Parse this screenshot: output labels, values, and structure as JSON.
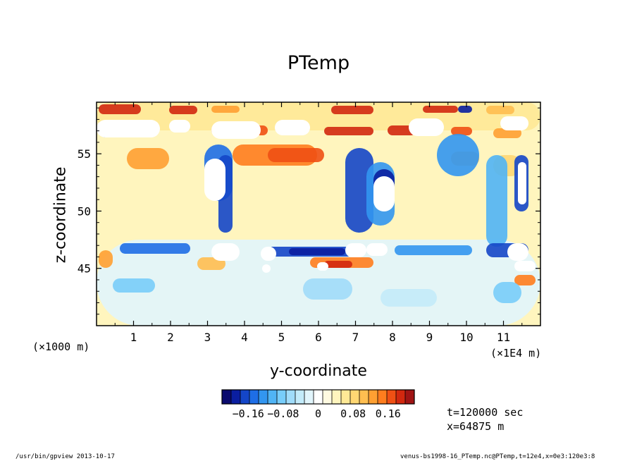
{
  "chart_data": {
    "type": "heatmap",
    "title": "PTemp",
    "xlabel": "y-coordinate",
    "ylabel": "z-coordinate",
    "x_unit": "(×1E4 m)",
    "y_unit": "(×1000 m)",
    "xlim": [
      0,
      12
    ],
    "ylim": [
      40,
      59.5
    ],
    "x_ticks": [
      1,
      2,
      3,
      4,
      5,
      6,
      7,
      8,
      9,
      10,
      11
    ],
    "x_tick_labels": [
      "1",
      "2",
      "3",
      "4",
      "5",
      "6",
      "7",
      "8",
      "9",
      "10",
      "11"
    ],
    "y_ticks": [
      45,
      50,
      55
    ],
    "y_tick_labels": [
      "45",
      "50",
      "55"
    ],
    "colorbar": {
      "range": [
        -0.22,
        0.22
      ],
      "tick_values": [
        -0.16,
        -0.08,
        0,
        0.08,
        0.16
      ],
      "tick_labels": [
        "−0.16",
        "−0.08",
        "0",
        "0.08",
        "0.16"
      ],
      "colors": [
        "#0a0a6e",
        "#0a1ea0",
        "#1446c8",
        "#1e6ee6",
        "#3296f0",
        "#50b4f5",
        "#78cdfa",
        "#a0dcfa",
        "#c3ebfa",
        "#e1f5fc",
        "#ffffff",
        "#fffae1",
        "#fff5be",
        "#ffe996",
        "#ffd773",
        "#ffbe50",
        "#ffa032",
        "#ff7d1e",
        "#f05014",
        "#d2280f",
        "#a01414"
      ]
    },
    "annotations": [
      "t=120000 sec",
      "x=64875 m"
    ]
  },
  "footer": {
    "left": "/usr/bin/gpview  2013-10-17",
    "right": "venus-bs1998-16_PTemp.nc@PTemp,t=12e4,x=0e3:120e3:8"
  }
}
